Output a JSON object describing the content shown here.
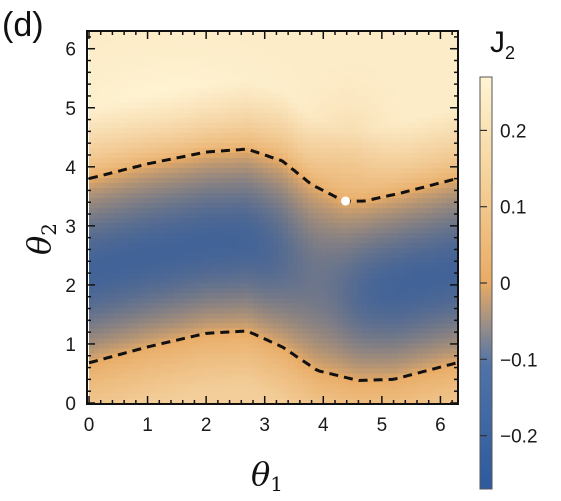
{
  "panel_label": "(d)",
  "chart_data": {
    "type": "heatmap",
    "xlabel": "θ",
    "xlabel_sub": "1",
    "ylabel": "θ",
    "ylabel_sub": "2",
    "xlim": [
      0,
      6.283
    ],
    "ylim": [
      0,
      6.283
    ],
    "x_ticks": [
      0,
      1,
      2,
      3,
      4,
      5,
      6
    ],
    "y_ticks": [
      0,
      1,
      2,
      3,
      4,
      5,
      6
    ],
    "colorbar": {
      "title": "J",
      "title_sub": "2",
      "range": [
        -0.27,
        0.27
      ],
      "ticks": [
        0.2,
        0.1,
        0,
        -0.1,
        -0.2
      ],
      "tick_labels": [
        "0.2",
        "0.1",
        "0",
        "−0.1",
        "−0.2"
      ],
      "colors": [
        "#2d5a9e",
        "#e8ab65",
        "#fff4d4"
      ]
    },
    "contours": [
      {
        "level": 0,
        "points": [
          [
            0,
            3.8
          ],
          [
            1.0,
            4.05
          ],
          [
            2.0,
            4.25
          ],
          [
            2.7,
            4.3
          ],
          [
            3.3,
            4.1
          ],
          [
            3.8,
            3.7
          ],
          [
            4.35,
            3.42
          ],
          [
            4.7,
            3.42
          ],
          [
            5.3,
            3.55
          ],
          [
            6.283,
            3.8
          ]
        ]
      },
      {
        "level": 0,
        "points": [
          [
            0,
            0.68
          ],
          [
            1.0,
            0.95
          ],
          [
            2.0,
            1.18
          ],
          [
            2.7,
            1.22
          ],
          [
            3.3,
            0.95
          ],
          [
            3.9,
            0.55
          ],
          [
            4.6,
            0.38
          ],
          [
            5.2,
            0.4
          ],
          [
            6.283,
            0.68
          ]
        ]
      }
    ],
    "singular_point": [
      4.38,
      3.42
    ]
  }
}
